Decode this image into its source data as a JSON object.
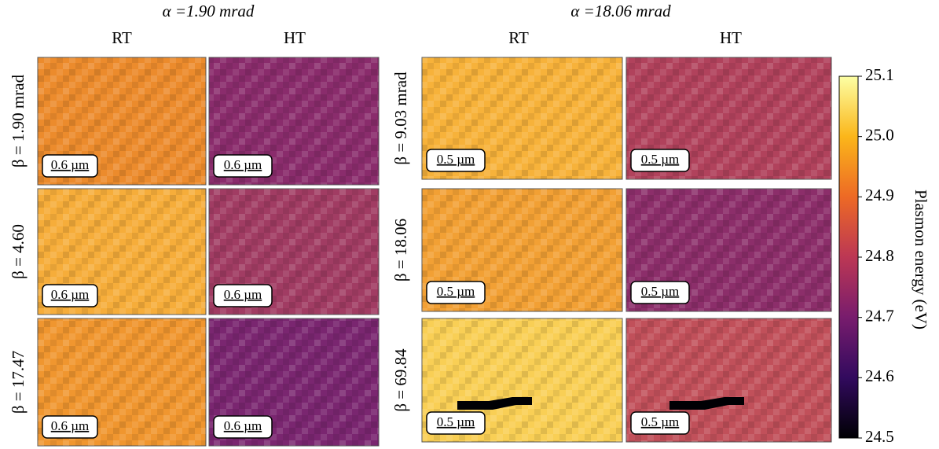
{
  "groups": [
    {
      "title": "α =1.90 mrad",
      "columns": [
        "RT",
        "HT"
      ],
      "rows": [
        {
          "label": "β = 1.90 mrad",
          "panels": [
            {
              "scale_bar": "0.6 µm",
              "color": "#ec8b2c"
            },
            {
              "scale_bar": "0.6 µm",
              "color": "#8a2c6c"
            }
          ]
        },
        {
          "label": "β = 4.60",
          "panels": [
            {
              "scale_bar": "0.6 µm",
              "color": "#f6ad3a"
            },
            {
              "scale_bar": "0.6 µm",
              "color": "#a13c63"
            }
          ]
        },
        {
          "label": "β = 17.47",
          "panels": [
            {
              "scale_bar": "0.6 µm",
              "color": "#f0962f"
            },
            {
              "scale_bar": "0.6 µm",
              "color": "#7a2670"
            }
          ]
        }
      ]
    },
    {
      "title": "α =18.06 mrad",
      "columns": [
        "RT",
        "HT"
      ],
      "rows": [
        {
          "label": "β = 9.03 mrad",
          "panels": [
            {
              "scale_bar": "0.5 µm",
              "color": "#f7b23a"
            },
            {
              "scale_bar": "0.5 µm",
              "color": "#b1425c"
            }
          ]
        },
        {
          "label": "β = 18.06",
          "panels": [
            {
              "scale_bar": "0.5 µm",
              "color": "#f2a034"
            },
            {
              "scale_bar": "0.5 µm",
              "color": "#8c2e6a"
            }
          ]
        },
        {
          "label": "β = 69.84",
          "panels": [
            {
              "scale_bar": "0.5 µm",
              "color": "#f9cf55"
            },
            {
              "scale_bar": "0.5 µm",
              "color": "#c1505a"
            }
          ]
        }
      ]
    }
  ],
  "colorbar": {
    "label": "Plasmon energy (eV)",
    "ylim": [
      24.5,
      25.1
    ],
    "yticks": [
      24.5,
      24.6,
      24.7,
      24.8,
      24.9,
      {
        "value": 25,
        "label": "25.0"
      },
      25.1
    ],
    "colors": [
      "#000004",
      "#320a5e",
      "#781c6d",
      "#bc3754",
      "#ed6925",
      "#fbb61a",
      "#fcffa4"
    ]
  }
}
